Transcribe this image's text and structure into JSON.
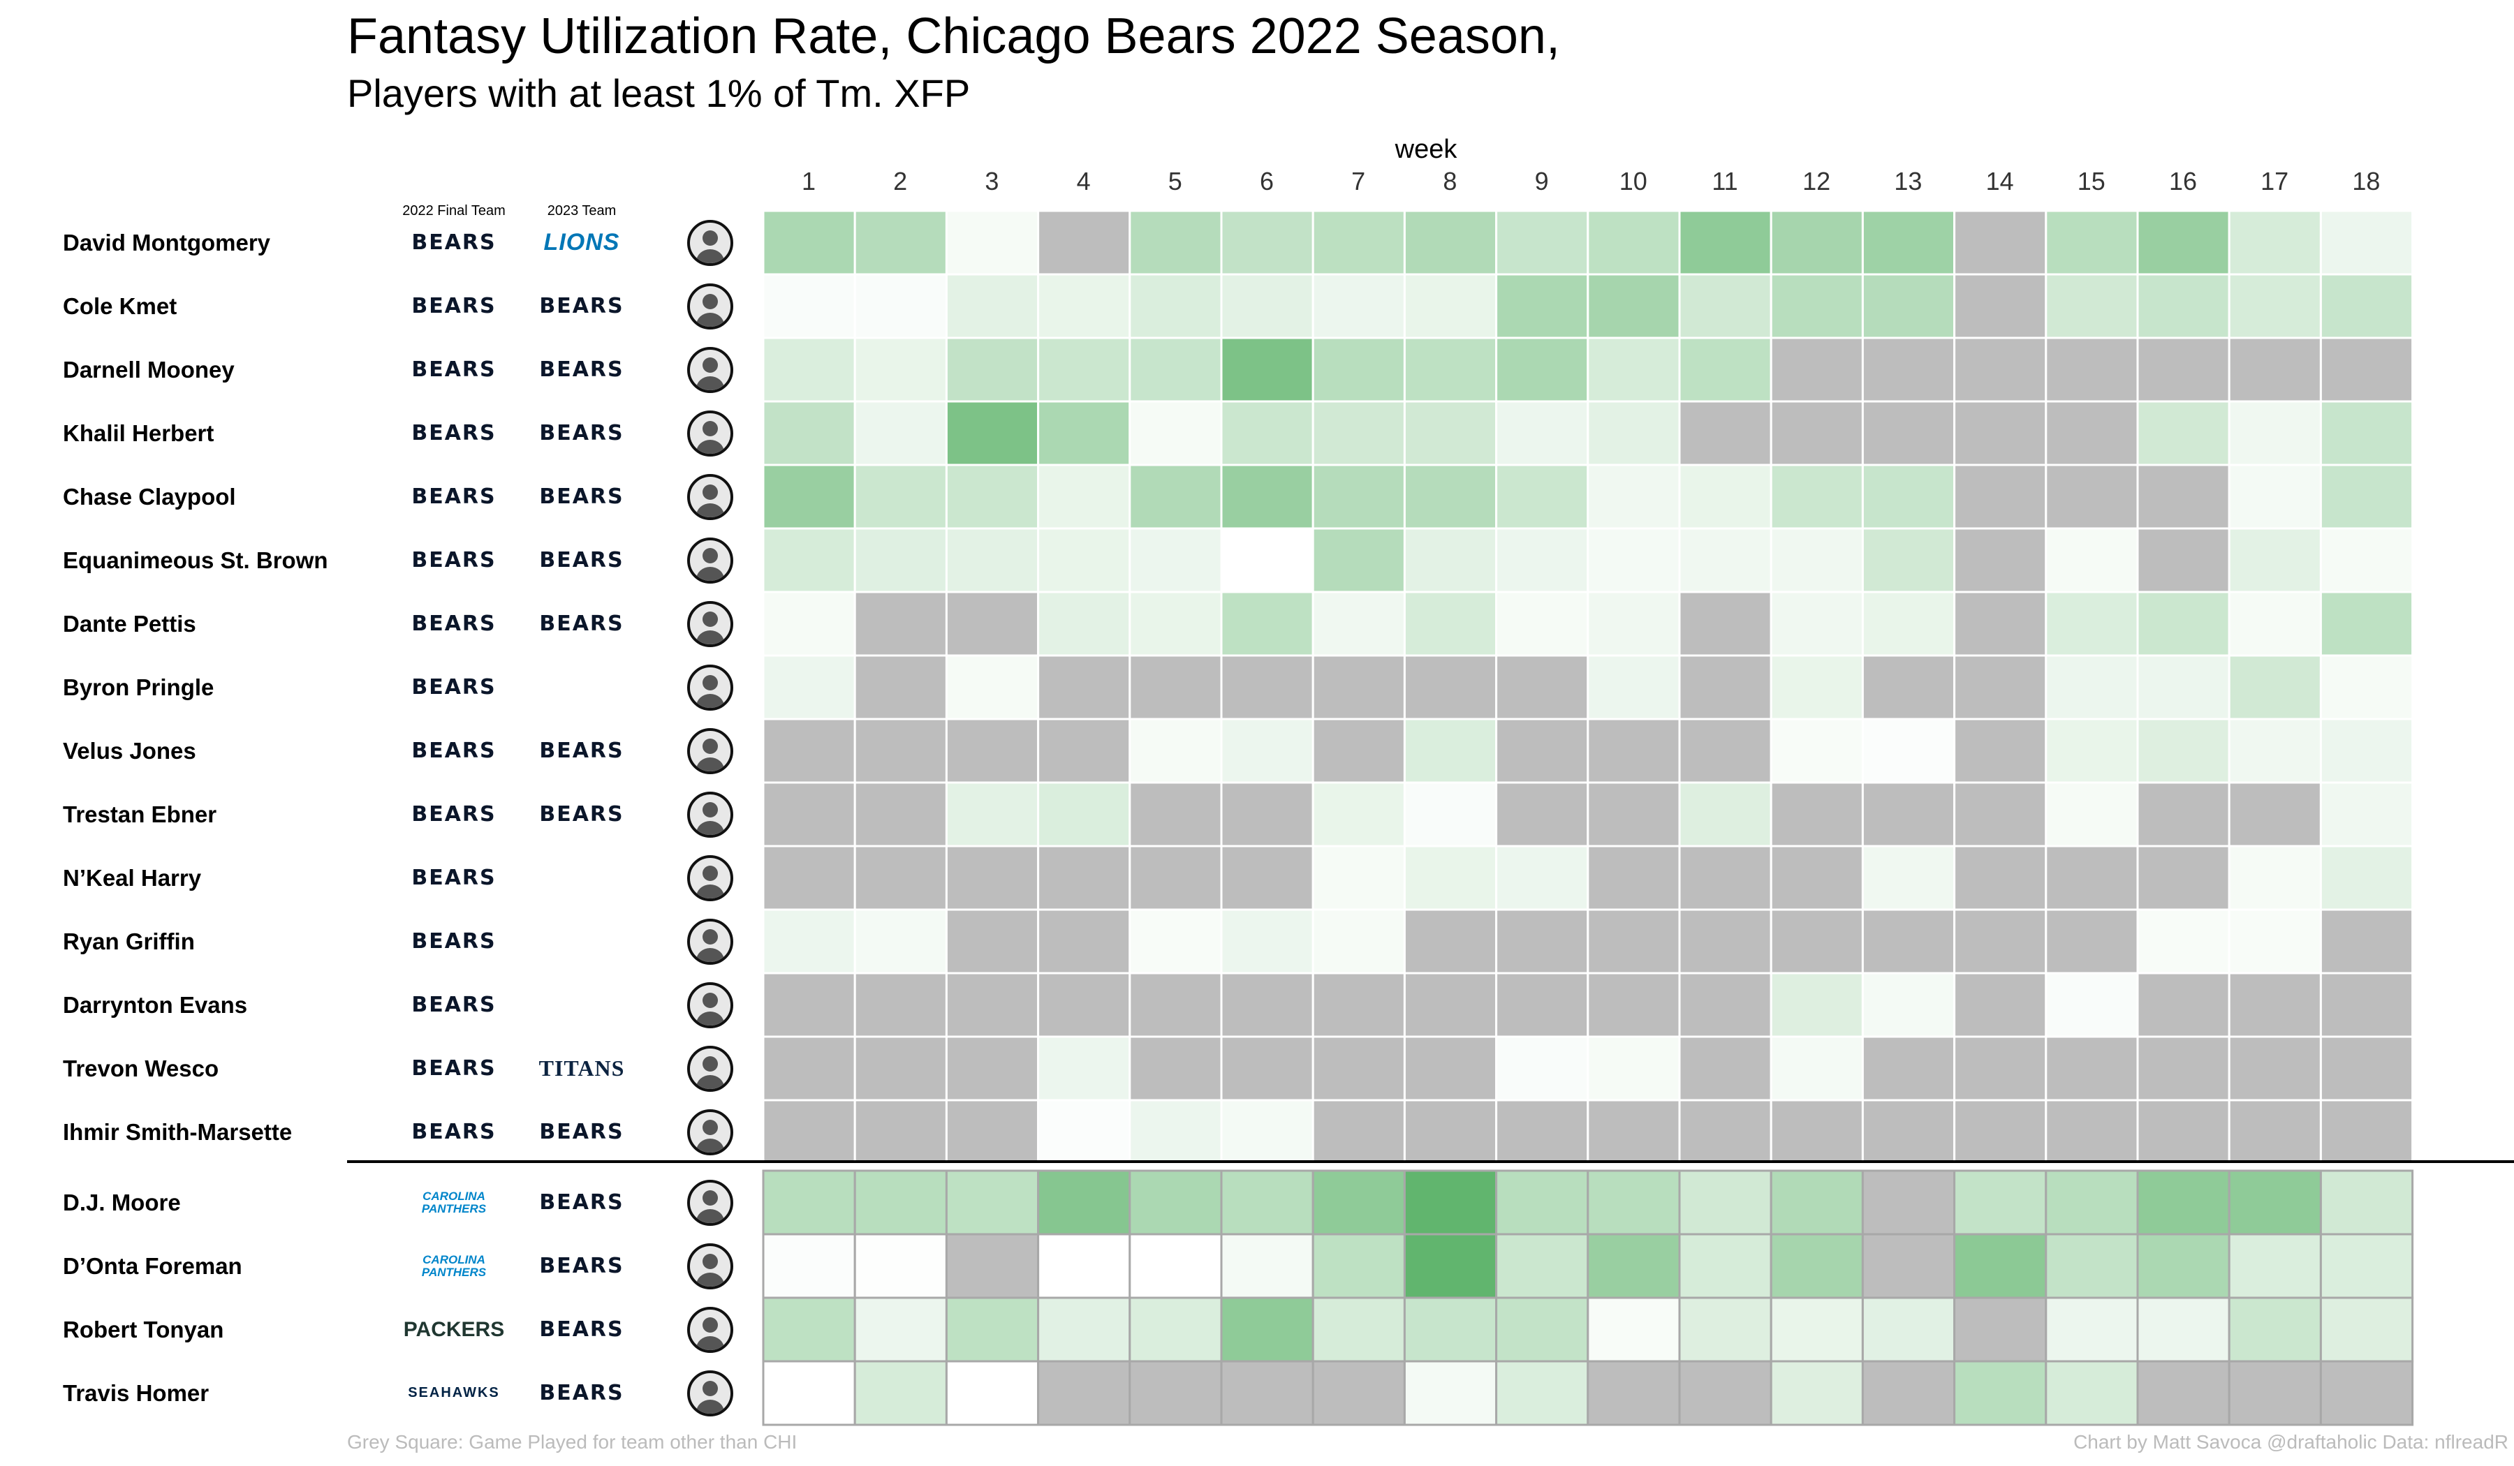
{
  "chart_data": {
    "type": "heatmap",
    "title": "Fantasy Utilization Rate, Chicago Bears 2022 Season,",
    "subtitle": "Players with at least 1% of Tm. XFP",
    "xlabel": "week",
    "weeks": [
      1,
      2,
      3,
      4,
      5,
      6,
      7,
      8,
      9,
      10,
      11,
      12,
      13,
      14,
      15,
      16,
      17,
      18
    ],
    "column_headers": {
      "final_team": "2022 Final Team",
      "next_team": "2023 Team"
    },
    "value_scale": "utilization share; null = game played for team other than CHI (grey)",
    "colors": {
      "low": "#ffffff",
      "high": "#45a854",
      "grey": "#bdbdbd"
    },
    "players": [
      {
        "name": "David Montgomery",
        "final_team": "BEARS",
        "next_team": "LIONS",
        "values": [
          0.45,
          0.4,
          0.05,
          null,
          0.4,
          0.33,
          0.36,
          0.42,
          0.3,
          0.35,
          0.6,
          0.48,
          0.52,
          null,
          0.38,
          0.55,
          0.22,
          0.1
        ]
      },
      {
        "name": "Cole Kmet",
        "final_team": "BEARS",
        "next_team": "BEARS",
        "values": [
          0.03,
          0.03,
          0.15,
          0.12,
          0.2,
          0.15,
          0.1,
          0.12,
          0.45,
          0.48,
          0.25,
          0.38,
          0.4,
          null,
          0.25,
          0.3,
          0.22,
          0.3
        ]
      },
      {
        "name": "Darnell Mooney",
        "final_team": "BEARS",
        "next_team": "BEARS",
        "values": [
          0.2,
          0.12,
          0.33,
          0.28,
          0.3,
          0.7,
          0.38,
          0.35,
          0.45,
          0.22,
          0.35,
          null,
          null,
          null,
          null,
          null,
          null,
          null
        ]
      },
      {
        "name": "Khalil Herbert",
        "final_team": "BEARS",
        "next_team": "BEARS",
        "values": [
          0.33,
          0.1,
          0.7,
          0.45,
          0.05,
          0.28,
          0.25,
          0.25,
          0.1,
          0.15,
          null,
          null,
          null,
          null,
          null,
          0.25,
          0.08,
          0.3
        ]
      },
      {
        "name": "Chase Claypool",
        "final_team": "BEARS",
        "next_team": "BEARS",
        "values": [
          0.55,
          0.28,
          0.28,
          0.12,
          0.42,
          0.55,
          0.4,
          0.4,
          0.28,
          0.08,
          0.12,
          0.28,
          0.3,
          null,
          null,
          null,
          0.06,
          0.3
        ]
      },
      {
        "name": "Equanimeous St. Brown",
        "final_team": "BEARS",
        "next_team": "BEARS",
        "values": [
          0.22,
          0.17,
          0.15,
          0.12,
          0.1,
          0.0,
          0.4,
          0.15,
          0.1,
          0.06,
          0.08,
          0.08,
          0.25,
          null,
          0.05,
          null,
          0.15,
          0.05
        ]
      },
      {
        "name": "Dante Pettis",
        "final_team": "BEARS",
        "next_team": "BEARS",
        "values": [
          0.05,
          null,
          null,
          0.15,
          0.12,
          0.35,
          0.08,
          0.22,
          0.05,
          0.08,
          null,
          0.08,
          0.12,
          null,
          0.2,
          0.28,
          0.05,
          0.35
        ]
      },
      {
        "name": "Byron Pringle",
        "final_team": "BEARS",
        "next_team": "",
        "values": [
          0.1,
          null,
          0.05,
          null,
          null,
          null,
          null,
          null,
          null,
          0.1,
          null,
          0.12,
          null,
          null,
          0.1,
          0.1,
          0.25,
          0.05
        ]
      },
      {
        "name": "Velus Jones",
        "final_team": "BEARS",
        "next_team": "BEARS",
        "values": [
          null,
          null,
          null,
          null,
          0.05,
          0.1,
          null,
          0.2,
          null,
          null,
          null,
          0.04,
          0.02,
          null,
          0.12,
          0.18,
          0.08,
          0.1
        ]
      },
      {
        "name": "Trestan Ebner",
        "final_team": "BEARS",
        "next_team": "BEARS",
        "values": [
          null,
          null,
          0.15,
          0.2,
          null,
          null,
          0.12,
          0.03,
          null,
          null,
          0.18,
          null,
          null,
          null,
          0.05,
          null,
          null,
          0.08
        ]
      },
      {
        "name": "N’Keal Harry",
        "final_team": "BEARS",
        "next_team": "",
        "values": [
          null,
          null,
          null,
          null,
          null,
          null,
          0.05,
          0.12,
          0.1,
          null,
          null,
          null,
          0.08,
          null,
          null,
          null,
          0.05,
          0.15
        ]
      },
      {
        "name": "Ryan Griffin",
        "final_team": "BEARS",
        "next_team": "",
        "values": [
          0.1,
          0.06,
          null,
          null,
          0.04,
          0.1,
          0.05,
          null,
          null,
          null,
          null,
          null,
          null,
          null,
          null,
          0.04,
          0.04,
          null
        ]
      },
      {
        "name": "Darrynton Evans",
        "final_team": "BEARS",
        "next_team": "",
        "values": [
          null,
          null,
          null,
          null,
          null,
          null,
          null,
          null,
          null,
          null,
          null,
          0.18,
          0.06,
          null,
          0.03,
          null,
          null,
          null
        ]
      },
      {
        "name": "Trevon Wesco",
        "final_team": "BEARS",
        "next_team": "TITANS",
        "values": [
          null,
          null,
          null,
          0.1,
          null,
          null,
          null,
          null,
          0.03,
          0.05,
          null,
          0.06,
          null,
          null,
          null,
          null,
          null,
          null
        ]
      },
      {
        "name": "Ihmir Smith-Marsette",
        "final_team": "BEARS",
        "next_team": "BEARS",
        "values": [
          null,
          null,
          null,
          0.02,
          0.1,
          0.06,
          null,
          null,
          null,
          null,
          null,
          null,
          null,
          null,
          null,
          null,
          null,
          null
        ]
      },
      {
        "name": "D.J. Moore",
        "final_team": "CAROLINA PANTHERS",
        "next_team": "BEARS",
        "values": [
          0.38,
          0.38,
          0.35,
          0.65,
          0.45,
          0.38,
          0.6,
          0.85,
          0.38,
          0.38,
          0.25,
          0.42,
          null,
          0.32,
          0.38,
          0.6,
          0.6,
          0.25
        ]
      },
      {
        "name": "D’Onta Foreman",
        "final_team": "CAROLINA PANTHERS",
        "next_team": "BEARS",
        "values": [
          0.02,
          0.01,
          null,
          0.0,
          0.0,
          0.06,
          0.35,
          0.85,
          0.28,
          0.55,
          0.22,
          0.48,
          null,
          0.62,
          0.32,
          0.45,
          0.2,
          0.2
        ]
      },
      {
        "name": "Robert Tonyan",
        "final_team": "PACKERS",
        "next_team": "BEARS",
        "values": [
          0.35,
          0.1,
          0.35,
          0.16,
          0.2,
          0.6,
          0.22,
          0.3,
          0.32,
          0.04,
          0.18,
          0.12,
          0.16,
          null,
          0.1,
          0.1,
          0.28,
          0.18
        ]
      },
      {
        "name": "Travis Homer",
        "final_team": "SEAHAWKS",
        "next_team": "BEARS",
        "values": [
          0.0,
          0.22,
          0.0,
          null,
          null,
          null,
          null,
          0.06,
          0.2,
          null,
          null,
          0.18,
          null,
          0.38,
          0.22,
          null,
          null,
          null
        ]
      }
    ],
    "footer_left": "Grey Square: Game Played for team other than CHI",
    "footer_right": "Chart by Matt Savoca    @draftaholic    Data: nflreadR"
  }
}
